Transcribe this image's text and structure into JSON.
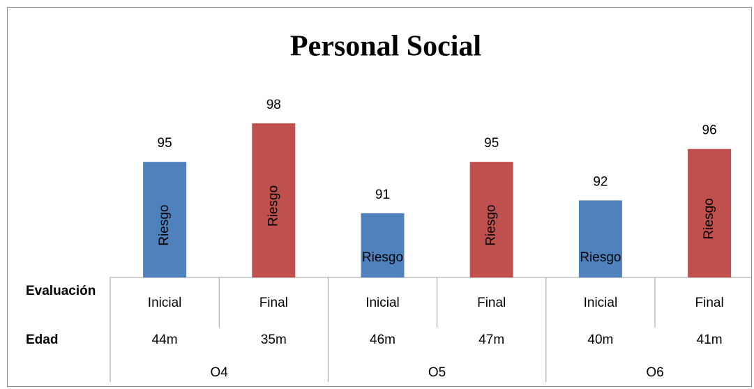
{
  "chart_data": {
    "type": "bar",
    "title": "Personal Social",
    "categories": [
      "Inicial",
      "Final",
      "Inicial",
      "Final",
      "Inicial",
      "Final"
    ],
    "values": [
      95,
      98,
      91,
      95,
      92,
      96
    ],
    "colors": [
      "#4f81bd",
      "#c0504d",
      "#4f81bd",
      "#c0504d",
      "#4f81bd",
      "#c0504d"
    ],
    "bar_labels": [
      "Riesgo",
      "Riesgo",
      "Riesgo",
      "Riesgo",
      "Riesgo",
      "Riesgo"
    ],
    "bar_label_orientation": [
      "vertical",
      "vertical",
      "horizontal",
      "vertical",
      "horizontal",
      "vertical"
    ],
    "row_labels": [
      "Evaluación",
      "Edad"
    ],
    "edad": [
      "44m",
      "35m",
      "46m",
      "47m",
      "40m",
      "41m"
    ],
    "groups": [
      "O4",
      "O5",
      "O6"
    ],
    "ylim": [
      86,
      100
    ]
  }
}
